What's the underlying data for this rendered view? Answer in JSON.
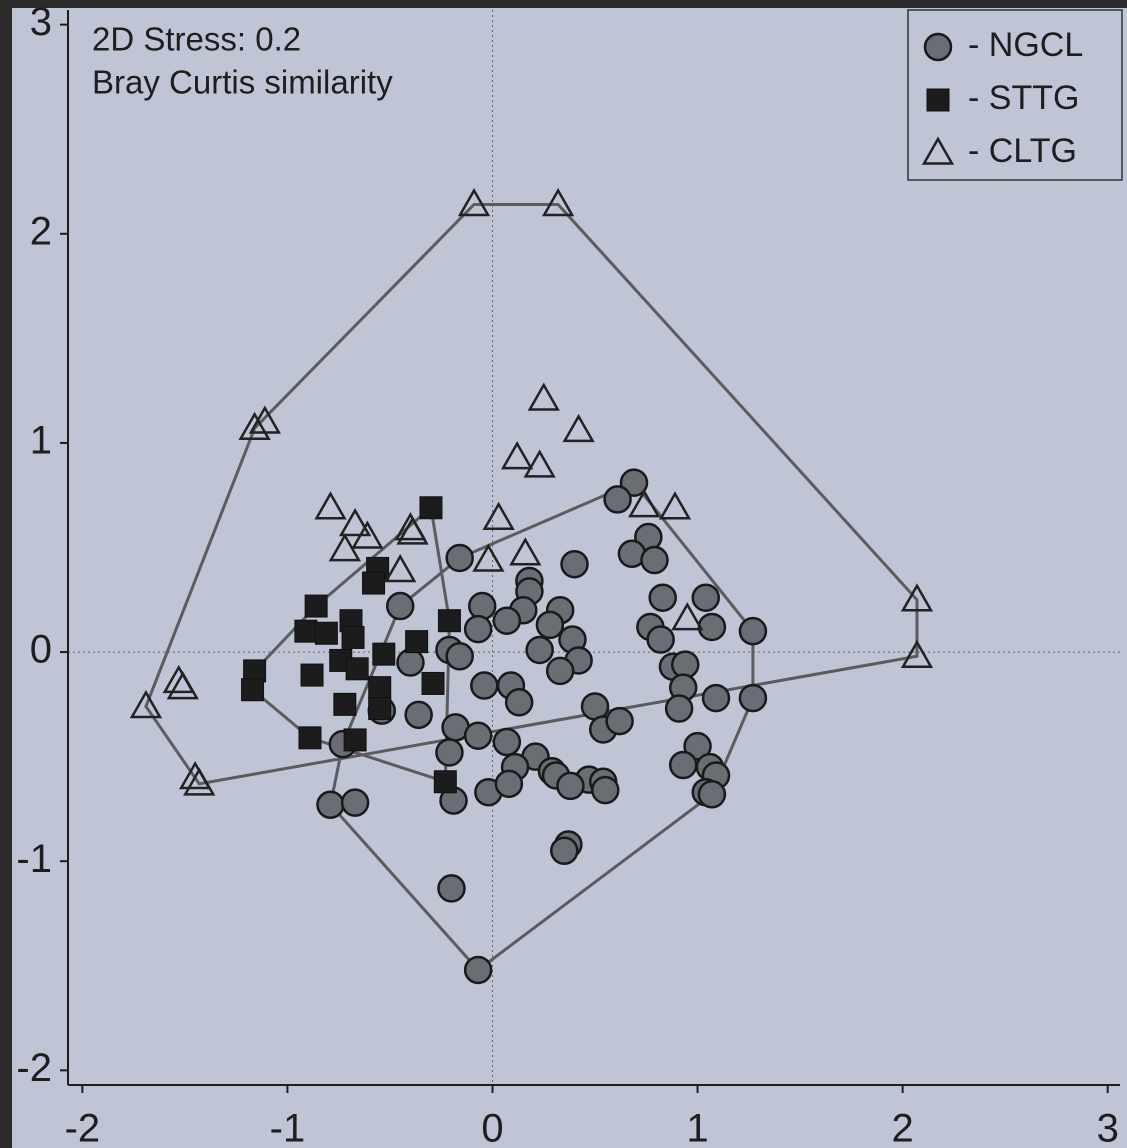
{
  "chart_data": {
    "type": "scatter",
    "annotations": [
      "2D Stress: 0.2",
      "Bray Curtis similarity"
    ],
    "xlim": [
      -2.07,
      3.06
    ],
    "ylim": [
      -2.07,
      3.07
    ],
    "xticks": [
      -2,
      -1,
      0,
      1,
      2,
      3
    ],
    "yticks": [
      -2,
      -1,
      0,
      1,
      2,
      3
    ],
    "zero_lines": true,
    "hulls": true,
    "legend": "upper right",
    "series": [
      {
        "name": "- NGCL",
        "marker": "circle",
        "color": "#6b6d74",
        "x": [
          0.69,
          0.61,
          0.76,
          0.68,
          0.79,
          0.4,
          -0.16,
          0.18,
          0.18,
          -0.45,
          -0.05,
          0.15,
          0.33,
          0.07,
          0.28,
          -0.07,
          0.39,
          0.83,
          1.04,
          1.07,
          1.27,
          0.77,
          0.82,
          -0.21,
          -0.16,
          0.23,
          0.42,
          0.88,
          0.94,
          -0.4,
          -0.04,
          0.09,
          0.13,
          0.33,
          0.93,
          1.09,
          1.27,
          0.91,
          0.5,
          0.54,
          0.62,
          -0.36,
          -0.54,
          -0.18,
          -0.07,
          0.07,
          -0.21,
          0.21,
          0.11,
          0.29,
          0.31,
          0.47,
          0.54,
          0.55,
          0.38,
          -0.02,
          0.08,
          -0.19,
          -0.73,
          -0.79,
          -0.67,
          1.0,
          0.93,
          1.06,
          1.09,
          1.04,
          1.07,
          0.37,
          0.35,
          -0.2,
          -0.07
        ],
        "y": [
          0.81,
          0.73,
          0.55,
          0.47,
          0.44,
          0.42,
          0.45,
          0.34,
          0.29,
          0.22,
          0.22,
          0.2,
          0.2,
          0.15,
          0.13,
          0.11,
          0.06,
          0.26,
          0.26,
          0.12,
          0.1,
          0.12,
          0.06,
          0.01,
          -0.02,
          0.01,
          -0.04,
          -0.07,
          -0.06,
          -0.05,
          -0.16,
          -0.16,
          -0.24,
          -0.09,
          -0.17,
          -0.22,
          -0.22,
          -0.27,
          -0.26,
          -0.37,
          -0.33,
          -0.3,
          -0.28,
          -0.36,
          -0.4,
          -0.43,
          -0.48,
          -0.5,
          -0.55,
          -0.57,
          -0.59,
          -0.61,
          -0.62,
          -0.66,
          -0.64,
          -0.67,
          -0.63,
          -0.71,
          -0.44,
          -0.73,
          -0.72,
          -0.45,
          -0.54,
          -0.55,
          -0.59,
          -0.67,
          -0.68,
          -0.92,
          -0.95,
          -1.13,
          -1.52
        ]
      },
      {
        "name": "- STTG",
        "marker": "square",
        "color": "#1c1c1c",
        "x": [
          -0.3,
          -0.56,
          -0.58,
          -0.86,
          -0.91,
          -0.81,
          -0.69,
          -0.68,
          -0.37,
          -0.21,
          -1.16,
          -1.17,
          -0.88,
          -0.74,
          -0.66,
          -0.53,
          -0.55,
          -0.29,
          -0.72,
          -0.89,
          -0.67,
          -0.55,
          -0.23
        ],
        "y": [
          0.69,
          0.4,
          0.33,
          0.22,
          0.1,
          0.09,
          0.15,
          0.07,
          0.05,
          0.15,
          -0.09,
          -0.18,
          -0.11,
          -0.04,
          -0.08,
          -0.01,
          -0.17,
          -0.15,
          -0.25,
          -0.41,
          -0.42,
          -0.27,
          -0.62
        ]
      },
      {
        "name": "- CLTG",
        "marker": "triangle",
        "color": "#222222",
        "x": [
          -0.09,
          0.32,
          -1.16,
          -1.11,
          0.25,
          0.42,
          0.12,
          0.23,
          -0.79,
          -0.67,
          -0.61,
          -0.72,
          -0.4,
          -0.39,
          -0.45,
          0.03,
          -0.02,
          0.16,
          0.74,
          0.89,
          0.95,
          2.07,
          2.07,
          -1.69,
          -1.53,
          -1.51,
          -1.45,
          -1.43
        ],
        "y": [
          2.14,
          2.14,
          1.07,
          1.1,
          1.21,
          1.06,
          0.93,
          0.89,
          0.69,
          0.61,
          0.55,
          0.49,
          0.59,
          0.57,
          0.39,
          0.64,
          0.44,
          0.47,
          0.7,
          0.69,
          0.16,
          0.25,
          -0.02,
          -0.26,
          -0.14,
          -0.17,
          -0.6,
          -0.63
        ]
      }
    ]
  }
}
